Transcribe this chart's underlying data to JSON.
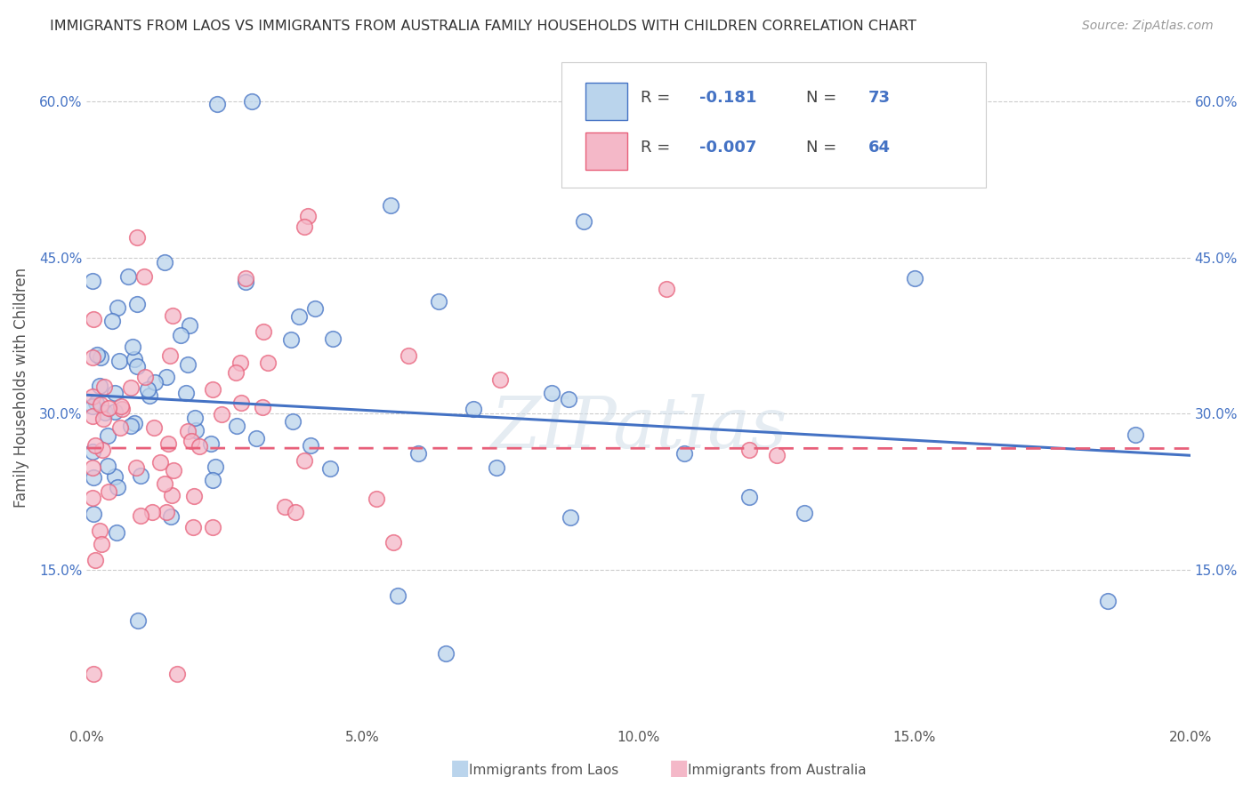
{
  "title": "IMMIGRANTS FROM LAOS VS IMMIGRANTS FROM AUSTRALIA FAMILY HOUSEHOLDS WITH CHILDREN CORRELATION CHART",
  "source": "Source: ZipAtlas.com",
  "ylabel": "Family Households with Children",
  "xlabel_laos": "Immigrants from Laos",
  "xlabel_australia": "Immigrants from Australia",
  "xlim": [
    0.0,
    0.2
  ],
  "ylim": [
    0.0,
    0.65
  ],
  "xticks": [
    0.0,
    0.05,
    0.1,
    0.15,
    0.2
  ],
  "yticks": [
    0.15,
    0.3,
    0.45,
    0.6
  ],
  "ytick_labels": [
    "15.0%",
    "30.0%",
    "45.0%",
    "60.0%"
  ],
  "xtick_labels": [
    "0.0%",
    "5.0%",
    "10.0%",
    "15.0%",
    "20.0%"
  ],
  "laos_fill_color": "#bad4ec",
  "laos_edge_color": "#4472c4",
  "australia_fill_color": "#f4b8c8",
  "australia_edge_color": "#e8607a",
  "laos_line_color": "#4472c4",
  "australia_line_color": "#e8607a",
  "R_laos": -0.181,
  "N_laos": 73,
  "R_australia": -0.007,
  "N_australia": 64,
  "watermark": "ZIPatlas",
  "background_color": "#ffffff",
  "grid_color": "#cccccc",
  "title_color": "#333333",
  "source_color": "#999999",
  "tick_color_blue": "#4472c4",
  "tick_color_dark": "#555555"
}
